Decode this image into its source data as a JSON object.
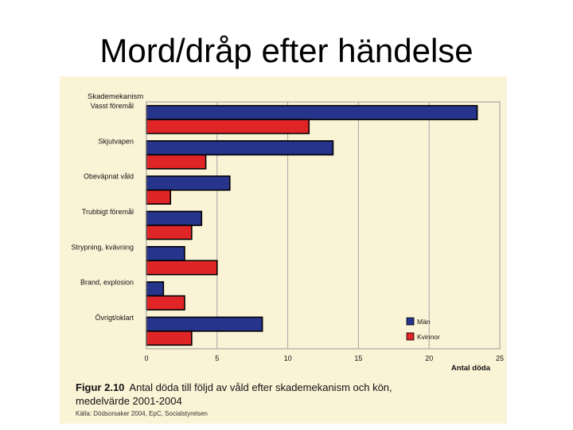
{
  "slide": {
    "title": "Mord/dråp efter händelse"
  },
  "figure": {
    "number": "Figur 2.10",
    "caption_line1": "Antal döda till följd av våld efter skademekanism och kön,",
    "caption_line2": "medelvärde 2001-2004",
    "source": "Källa: Dödsorsaker 2004, EpC, Socialstyrelsen"
  },
  "colors": {
    "man": "#26348c",
    "kvinnor": "#e02527",
    "background": "#fbf3d6"
  },
  "chart_data": {
    "type": "bar",
    "orientation": "horizontal",
    "ylabel": "Skademekanism",
    "xlabel": "Antal döda",
    "categories": [
      "Vasst föremål",
      "Skjutvapen",
      "Obeväpnat våld",
      "Trubbigt föremål",
      "Strypning, kvävning",
      "Brand, explosion",
      "Övrigt/oklart"
    ],
    "series": [
      {
        "name": "Män",
        "color": "#26348c",
        "values": [
          23.4,
          13.2,
          5.9,
          3.9,
          2.7,
          1.2,
          8.2
        ]
      },
      {
        "name": "Kvinnor",
        "color": "#e02527",
        "values": [
          11.5,
          4.2,
          1.7,
          3.2,
          5.0,
          2.7,
          3.2
        ]
      }
    ],
    "xlim": [
      0,
      25
    ],
    "xticks": [
      0,
      5,
      10,
      15,
      20,
      25
    ],
    "grid": true,
    "legend": "bottom-right"
  }
}
